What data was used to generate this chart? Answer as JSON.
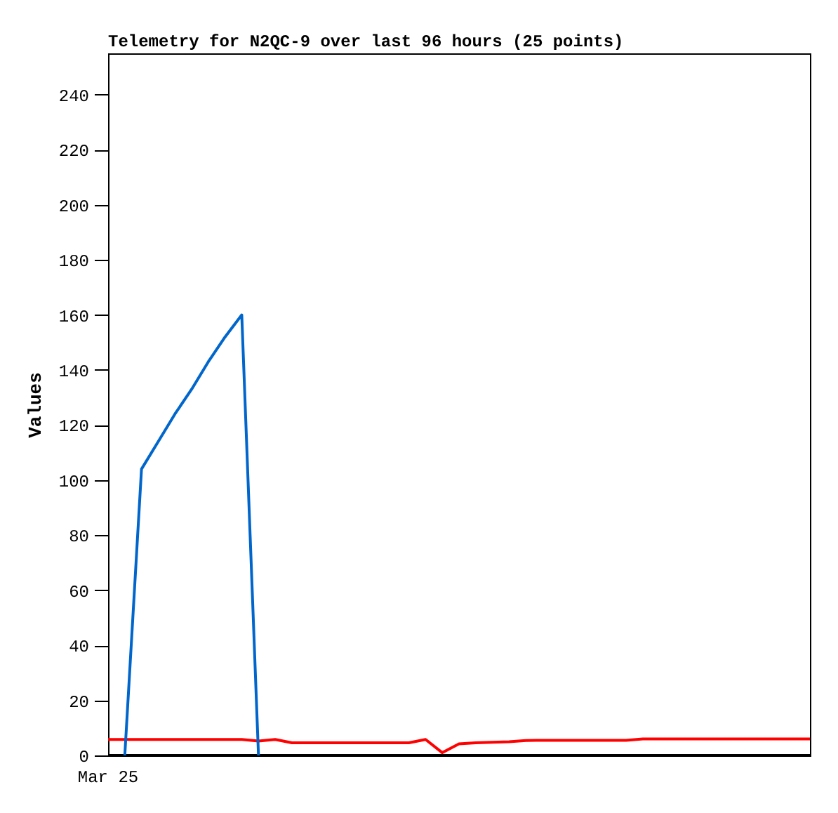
{
  "chart_data": {
    "type": "line",
    "title": "Telemetry for N2QC-9 over last 96 hours (25 points)",
    "ylabel": "Values",
    "annotations": [
      "Mar 25"
    ],
    "categories": [
      null,
      null,
      null,
      null,
      null,
      null,
      null,
      null,
      null,
      null,
      null,
      null,
      null,
      null,
      null,
      null,
      null,
      null,
      null,
      null,
      null,
      null,
      null,
      null,
      null,
      null,
      null,
      null,
      null,
      null,
      null,
      null,
      null,
      null,
      null,
      null,
      null,
      null,
      null,
      null,
      null,
      null,
      null
    ],
    "ylim": [
      0,
      255
    ],
    "yticks": [
      0,
      20,
      40,
      60,
      80,
      100,
      120,
      140,
      160,
      180,
      200,
      220,
      240
    ],
    "grid": false,
    "series": [
      {
        "color": "#000000",
        "values": [
          0,
          0,
          0,
          0,
          0,
          0,
          0,
          0,
          0,
          0,
          0,
          0,
          0,
          0,
          0,
          0,
          0,
          0,
          0,
          0,
          0,
          0,
          0,
          0,
          0,
          0,
          0,
          0,
          0,
          0,
          0,
          0,
          0,
          0,
          0,
          0,
          0,
          0,
          0,
          0,
          0,
          0,
          0
        ]
      },
      {
        "color": "#ff0000",
        "values": [
          5.8,
          5.8,
          5.8,
          5.8,
          5.8,
          5.8,
          5.8,
          5.8,
          5.8,
          5.2,
          5.8,
          4.6,
          4.6,
          4.6,
          4.6,
          4.6,
          4.6,
          4.6,
          4.6,
          5.8,
          1,
          4.2,
          4.6,
          4.8,
          5,
          5.4,
          5.5,
          5.5,
          5.5,
          5.5,
          5.5,
          5.5,
          6,
          6,
          6,
          6,
          6,
          6,
          6,
          6,
          6,
          6,
          6
        ]
      },
      {
        "color": "#0066cc",
        "values": [
          null,
          0,
          104,
          114,
          124,
          133,
          143,
          152,
          160,
          0,
          null,
          null,
          null,
          null,
          null,
          null,
          null,
          null,
          null,
          null,
          null,
          null,
          null,
          null,
          null,
          null,
          null,
          null,
          null,
          null,
          null,
          null,
          null,
          null,
          null,
          null,
          null,
          null,
          null,
          null,
          null,
          null,
          null
        ]
      }
    ]
  }
}
